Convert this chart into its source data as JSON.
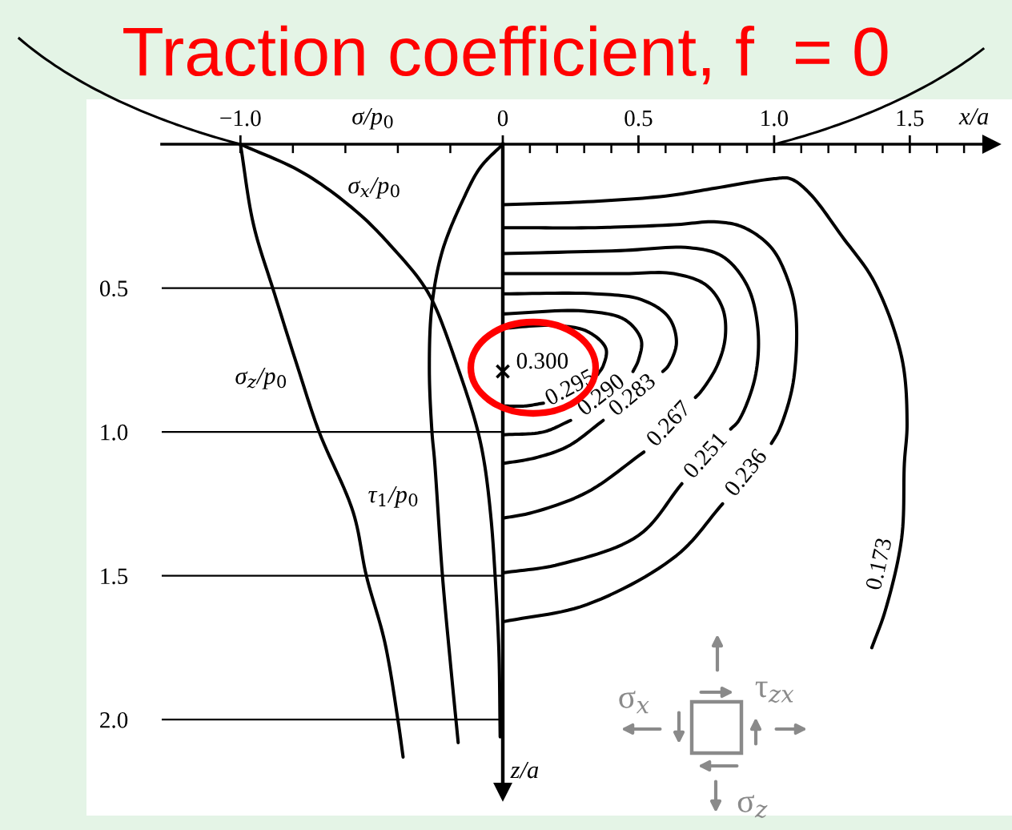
{
  "chart_data": [
    {
      "type": "line",
      "title": "Traction coefficient, f  = 0",
      "xlabel": "σ/p$_{0}$",
      "xlim": [
        -1.3,
        0
      ],
      "xticks": [
        {
          "value": -1.0,
          "label": "−1.0"
        },
        {
          "value": -0.8,
          "label": null
        },
        {
          "value": -0.6,
          "label": null
        },
        {
          "value": -0.4,
          "label": null
        },
        {
          "value": -0.2,
          "label": null
        },
        0
      ],
      "ylim": [
        2.25,
        0
      ],
      "yticks": [
        0.5,
        {
          "value": 1,
          "label": "1.0"
        },
        1.5,
        {
          "value": 2,
          "label": "2.0"
        }
      ],
      "grid": "y",
      "series": [
        {
          "name": "σ$_{x}$/p$_{0}$",
          "color": "#000000",
          "x": [
            -1.0,
            -0.76,
            -0.55,
            -0.41,
            -0.31,
            -0.26,
            -0.17,
            -0.1,
            -0.07,
            -0.045,
            -0.03,
            -0.015,
            -0.01
          ],
          "values": [
            0,
            0.1,
            0.24,
            0.37,
            0.48,
            0.56,
            0.78,
            0.98,
            1.11,
            1.3,
            1.49,
            1.76,
            2.06
          ]
        },
        {
          "name": "σ$_{z}$/p$_{0}$",
          "color": "#000000",
          "x": [
            -1.0,
            -0.95,
            -0.87,
            -0.78,
            -0.7,
            -0.57,
            -0.52,
            -0.45,
            -0.4,
            -0.38
          ],
          "values": [
            0,
            0.28,
            0.52,
            0.78,
            1.0,
            1.28,
            1.5,
            1.73,
            2.0,
            2.13
          ]
        },
        {
          "name": "τ$_{1}$/p$_{0}$",
          "color": "#000000",
          "x": [
            0,
            -0.085,
            -0.15,
            -0.23,
            -0.27,
            -0.28,
            -0.27,
            -0.26,
            -0.23,
            -0.2,
            -0.17
          ],
          "values": [
            0,
            0.08,
            0.19,
            0.37,
            0.56,
            0.78,
            1.0,
            1.1,
            1.5,
            1.8,
            2.08
          ]
        }
      ]
    },
    {
      "type": "line",
      "xlabel": "x/a",
      "ylabel": "z/a",
      "xlim": [
        0,
        1.8
      ],
      "xticks": [
        {
          "value": 0.1,
          "label": null
        },
        {
          "value": 0.2,
          "label": null
        },
        {
          "value": 0.3,
          "label": null
        },
        {
          "value": 0.4,
          "label": null
        },
        0.5,
        {
          "value": 0.6,
          "label": null
        },
        {
          "value": 0.7,
          "label": null
        },
        {
          "value": 0.8,
          "label": null
        },
        {
          "value": 0.9,
          "label": null
        },
        {
          "value": 1,
          "label": "1.0"
        },
        {
          "value": 1.1,
          "label": null
        },
        {
          "value": 1.2,
          "label": null
        },
        {
          "value": 1.3,
          "label": null
        },
        {
          "value": 1.4,
          "label": null
        },
        1.5,
        {
          "value": 1.6,
          "label": null
        },
        {
          "value": 1.7,
          "label": null
        }
      ],
      "ylim": [
        2.25,
        0
      ],
      "tick_labels": "x",
      "series": [
        {
          "name": "0.295",
          "color": "#000000",
          "x": [
            0,
            0.18,
            0.31,
            0.38,
            0.37,
            0.35,
            0.25,
            0.15,
            0.08,
            0
          ],
          "values": [
            0.64,
            0.63,
            0.65,
            0.71,
            0.77,
            0.8,
            null,
            0.9,
            0.91,
            0.91
          ]
        },
        {
          "name": "0.290",
          "color": "#000000",
          "x": [
            0,
            0.3,
            0.45,
            0.51,
            0.5,
            0.48,
            0.37,
            0.25,
            0.15,
            0
          ],
          "values": [
            0.59,
            0.58,
            0.61,
            0.68,
            0.75,
            0.79,
            null,
            0.96,
            1.0,
            1.01
          ]
        },
        {
          "name": "0.283",
          "color": "#000000",
          "x": [
            0,
            0.34,
            0.51,
            0.61,
            0.64,
            0.61,
            0.59,
            0.48,
            0.37,
            0.24,
            0.12,
            0
          ],
          "values": [
            0.52,
            0.52,
            0.54,
            0.6,
            0.69,
            0.77,
            0.79,
            null,
            0.96,
            1.05,
            1.09,
            1.11
          ]
        },
        {
          "name": "0.267",
          "color": "#000000",
          "x": [
            0,
            0.43,
            0.63,
            0.75,
            0.81,
            0.82,
            0.79,
            0.73,
            0.71,
            0.61,
            0.52,
            0.31,
            0.11,
            0
          ],
          "values": [
            0.45,
            0.45,
            0.45,
            0.49,
            0.57,
            0.67,
            0.77,
            0.86,
            0.88,
            null,
            1.07,
            1.21,
            1.28,
            1.3
          ]
        },
        {
          "name": "0.251",
          "color": "#000000",
          "x": [
            0,
            0.43,
            0.69,
            0.81,
            0.9,
            0.94,
            0.93,
            0.87,
            0.84,
            0.75,
            0.66,
            0.5,
            0.21,
            0
          ],
          "values": [
            0.38,
            0.37,
            0.36,
            0.39,
            0.49,
            0.64,
            0.81,
            0.96,
            0.99,
            null,
            1.18,
            1.36,
            1.46,
            1.49
          ]
        },
        {
          "name": "0.236",
          "color": "#000000",
          "x": [
            0,
            0.34,
            0.63,
            0.79,
            0.89,
            0.99,
            1.05,
            1.08,
            1.07,
            1.02,
            0.99,
            0.9,
            0.81,
            0.64,
            0.31,
            0
          ],
          "values": [
            0.29,
            0.29,
            0.28,
            0.27,
            0.29,
            0.36,
            0.47,
            0.59,
            0.83,
            0.99,
            1.04,
            null,
            1.25,
            1.43,
            1.6,
            1.66
          ]
        },
        {
          "name": "0.173",
          "color": "#000000",
          "x": [
            0,
            0.31,
            0.6,
            0.8,
            1.0,
            1.06,
            1.13,
            1.25,
            1.37,
            1.47,
            1.49,
            1.48,
            1.47,
            1.41,
            1.36
          ],
          "values": [
            0.21,
            0.2,
            0.18,
            0.15,
            0.12,
            0.12,
            0.17,
            0.32,
            0.48,
            0.74,
            0.97,
            1.11,
            1.37,
            1.62,
            1.75
          ]
        },
        {
          "name": "0.300",
          "type": "scatter",
          "marker": "cross",
          "color": "#000000",
          "x": [
            0
          ],
          "values": [
            0.79
          ]
        }
      ],
      "annotations": [
        "σ$_{x}$",
        "τ$_{zx}$",
        "σ$_{z}$"
      ]
    }
  ]
}
